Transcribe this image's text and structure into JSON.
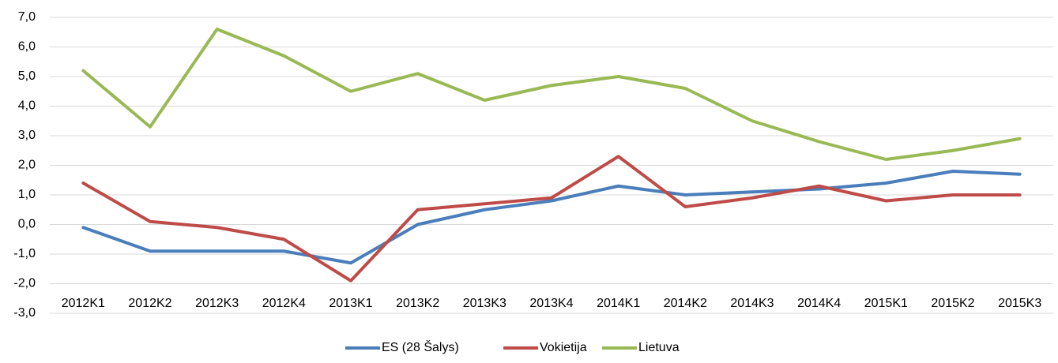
{
  "chart_data": {
    "type": "line",
    "categories": [
      "2012K1",
      "2012K2",
      "2012K3",
      "2012K4",
      "2013K1",
      "2013K2",
      "2013K3",
      "2013K4",
      "2014K1",
      "2014K2",
      "2014K3",
      "2014K4",
      "2015K1",
      "2015K2",
      "2015K3"
    ],
    "series": [
      {
        "name": "ES (28 Šalys)",
        "color": "#4a7ebb",
        "values": [
          -0.1,
          -0.9,
          -0.9,
          -0.9,
          -1.3,
          0.0,
          0.5,
          0.8,
          1.3,
          1.0,
          1.1,
          1.2,
          1.4,
          1.8,
          1.7
        ]
      },
      {
        "name": "Vokietija",
        "color": "#be4b48",
        "values": [
          1.4,
          0.1,
          -0.1,
          -0.5,
          -1.9,
          0.5,
          0.7,
          0.9,
          2.3,
          0.6,
          0.9,
          1.3,
          0.8,
          1.0,
          1.0
        ]
      },
      {
        "name": "Lietuva",
        "color": "#98b954",
        "values": [
          5.2,
          3.3,
          6.6,
          5.7,
          4.5,
          5.1,
          4.2,
          4.7,
          5.0,
          4.6,
          3.5,
          2.8,
          2.2,
          2.5,
          2.9
        ]
      }
    ],
    "ylim": [
      -3,
      7
    ],
    "yticks": [
      {
        "value": -3,
        "label": "-3,0"
      },
      {
        "value": -2,
        "label": "-2,0"
      },
      {
        "value": -1,
        "label": "-1,0"
      },
      {
        "value": 0,
        "label": "0,0"
      },
      {
        "value": 1,
        "label": "1,0"
      },
      {
        "value": 2,
        "label": "2,0"
      },
      {
        "value": 3,
        "label": "3,0"
      },
      {
        "value": 4,
        "label": "4,0"
      },
      {
        "value": 5,
        "label": "5,0"
      },
      {
        "value": 6,
        "label": "6,0"
      },
      {
        "value": 7,
        "label": "7,0"
      }
    ],
    "grid": true,
    "legend": "bottom"
  }
}
